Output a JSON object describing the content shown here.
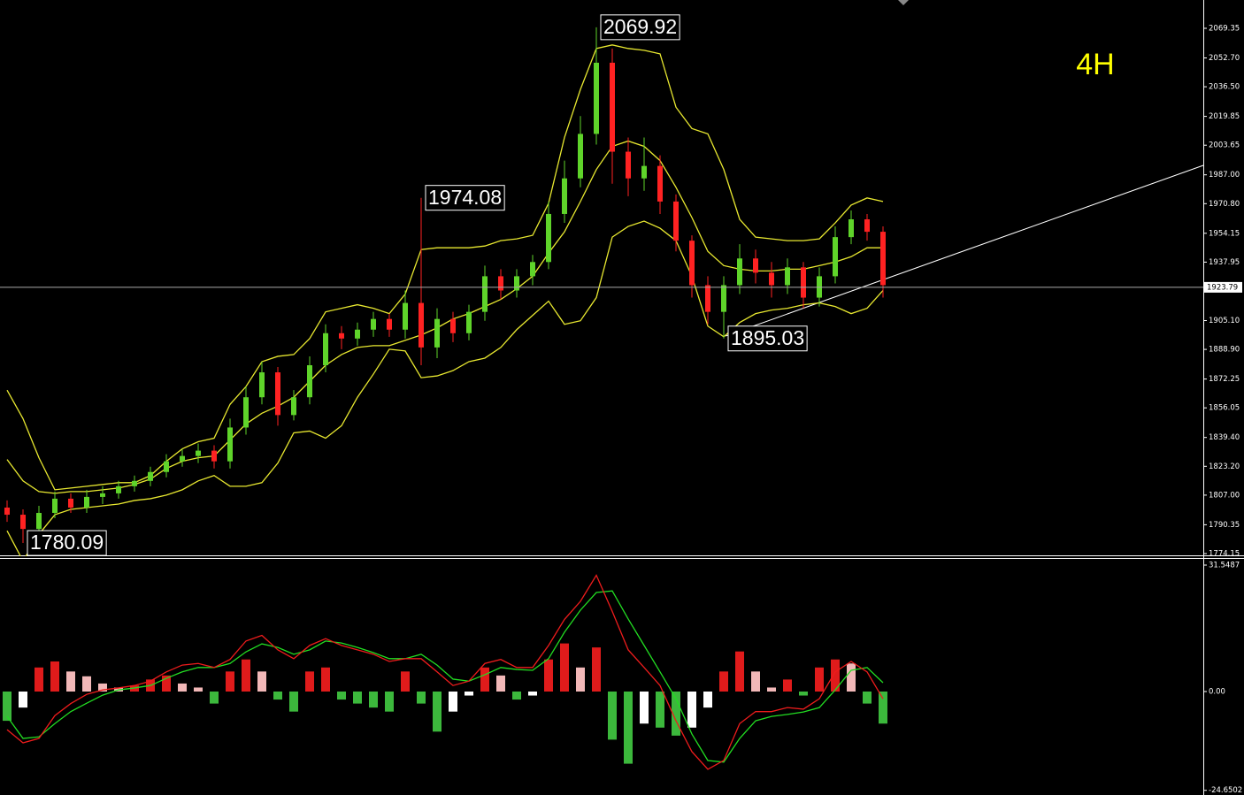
{
  "chart_data": [
    {
      "type": "candlestick",
      "timeframe": "4H",
      "ylim": [
        1772.66,
        2085.25
      ],
      "yticks": [
        2069.35,
        {
          "value": 2052.7,
          "label": "2052.70"
        },
        {
          "value": 2036.5,
          "label": "2036.50"
        },
        2019.85,
        2003.65,
        {
          "value": 1987,
          "label": "1987.00"
        },
        {
          "value": 1970.8,
          "label": "1970.80"
        },
        1954.15,
        1937.95,
        {
          "value": 1905.1,
          "label": "1905.10"
        },
        {
          "value": 1888.9,
          "label": "1888.90"
        },
        1872.25,
        1856.05,
        {
          "value": 1839.4,
          "label": "1839.40"
        },
        {
          "value": 1823.2,
          "label": "1823.20"
        },
        {
          "value": 1807,
          "label": "1807.00"
        },
        1790.35,
        1774.15
      ],
      "current_price": 1923.79,
      "annotations": [
        2069.92,
        1974.08,
        1895.03,
        1780.09
      ],
      "up_color": "#5fd42a",
      "down_color": "#ff2222",
      "band_color": "#e8e830",
      "open": [
        1800,
        1796,
        1788,
        1797,
        1805,
        1800,
        1806,
        1808,
        1812,
        1815,
        1820,
        1826,
        1829,
        1832,
        1826,
        1845,
        1862,
        1876,
        1852,
        1862,
        1880,
        1898,
        1895,
        1900,
        1906,
        1900,
        1915,
        1890,
        1906,
        1898,
        1910,
        1930,
        1922,
        1930,
        1938,
        1965,
        1985,
        2010,
        2050,
        2000,
        1985,
        1992,
        1972,
        1950,
        1925,
        1910,
        1925,
        1940,
        1932,
        1925,
        1935,
        1918,
        1930,
        1952,
        1962,
        1955
      ],
      "high": [
        1804,
        1799,
        1801,
        1809,
        1808,
        1810,
        1812,
        1815,
        1818,
        1823,
        1830,
        1833,
        1836,
        1835,
        1850,
        1868,
        1882,
        1879,
        1866,
        1885,
        1903,
        1902,
        1904,
        1910,
        1909,
        1922,
        1974.08,
        1912,
        1910,
        1914,
        1936,
        1934,
        1934,
        1942,
        1972,
        1995,
        2020,
        2069.92,
        2058,
        2008,
        2008,
        1998,
        1976,
        1953,
        1930,
        1930,
        1948,
        1945,
        1938,
        1940,
        1938,
        1935,
        1958,
        1967,
        1965,
        1958
      ],
      "low": [
        1792,
        1780.09,
        1785,
        1794,
        1797,
        1797,
        1802,
        1805,
        1809,
        1812,
        1817,
        1823,
        1825,
        1822,
        1822,
        1841,
        1858,
        1846,
        1849,
        1858,
        1876,
        1889,
        1891,
        1896,
        1896,
        1895,
        1880,
        1884,
        1893,
        1894,
        1905,
        1917,
        1918,
        1925,
        1934,
        1960,
        1980,
        2004,
        1982,
        1975,
        1978,
        1965,
        1944,
        1918,
        1903,
        1895.03,
        1920,
        1926,
        1918,
        1920,
        1912,
        1913,
        1926,
        1948,
        1950,
        1918
      ],
      "close": [
        1796,
        1788,
        1797,
        1805,
        1800,
        1806,
        1808,
        1812,
        1815,
        1820,
        1826,
        1829,
        1832,
        1826,
        1845,
        1862,
        1876,
        1852,
        1862,
        1880,
        1898,
        1895,
        1900,
        1906,
        1900,
        1915,
        1890,
        1906,
        1898,
        1910,
        1930,
        1922,
        1930,
        1938,
        1965,
        1985,
        2010,
        2050,
        2000,
        1985,
        1992,
        1972,
        1950,
        1925,
        1910,
        1925,
        1940,
        1932,
        1925,
        1935,
        1918,
        1930,
        1952,
        1962,
        1955,
        1925
      ],
      "upper": [
        1866,
        1850,
        1828,
        1810,
        1811,
        1812,
        1813,
        1814,
        1814,
        1818,
        1826,
        1833,
        1837,
        1839,
        1858,
        1868,
        1882,
        1885,
        1886,
        1895,
        1910,
        1912,
        1914,
        1912,
        1909,
        1920,
        1945,
        1946,
        1946,
        1946,
        1947,
        1950,
        1951,
        1953,
        1971,
        2008,
        2035,
        2058,
        2060,
        2058,
        2057,
        2055,
        2025,
        2013,
        2010,
        1990,
        1962,
        1952,
        1951,
        1950,
        1950,
        1951,
        1960,
        1970,
        1974,
        1972
      ],
      "middle": [
        1827,
        1815,
        1809,
        1808,
        1809,
        1809,
        1810,
        1811,
        1813,
        1816,
        1822,
        1826,
        1828,
        1829,
        1838,
        1847,
        1853,
        1857,
        1862,
        1871,
        1880,
        1886,
        1890,
        1891,
        1891,
        1894,
        1897,
        1901,
        1906,
        1909,
        1913,
        1917,
        1923,
        1930,
        1943,
        1955,
        1972,
        1990,
        2003,
        2006,
        2003,
        1995,
        1980,
        1963,
        1944,
        1936,
        1934,
        1933,
        1933,
        1934,
        1934,
        1936,
        1938,
        1941,
        1946,
        1946
      ],
      "lower": [
        1787,
        1770,
        1785,
        1796,
        1799,
        1800,
        1801,
        1802,
        1804,
        1805,
        1807,
        1810,
        1815,
        1818,
        1812,
        1812,
        1814,
        1825,
        1842,
        1843,
        1839,
        1846,
        1862,
        1875,
        1889,
        1888,
        1873,
        1874,
        1877,
        1882,
        1884,
        1890,
        1900,
        1908,
        1916,
        1903,
        1905,
        1918,
        1952,
        1958,
        1961,
        1957,
        1950,
        1930,
        1902,
        1896,
        1904,
        1909,
        1911,
        1912,
        1914,
        1915,
        1913,
        1909,
        1912,
        1922
      ]
    },
    {
      "type": "macd",
      "ylim": [
        -25.81,
        33.09
      ],
      "yticks": [
        31.5487,
        {
          "value": 0,
          "label": "0.00"
        },
        -24.6502
      ],
      "histogram_colors": {
        "positive_rising": "#e01b1b",
        "positive_falling": "#f2b8b8",
        "negative_falling": "#3cb83c",
        "negative_rising": "#ffffff"
      },
      "histogram": [
        -7.3,
        -4,
        6,
        7.5,
        5,
        3.8,
        2,
        1,
        1.5,
        3,
        4,
        2,
        1,
        -3,
        5,
        8,
        5,
        -2,
        -5,
        5,
        6,
        -2,
        -3,
        -4,
        -5,
        5,
        -3,
        -10,
        -5,
        -1,
        6,
        4,
        -2,
        -1,
        8,
        12,
        6,
        11,
        -12,
        -18,
        -8,
        -9,
        -11,
        -9,
        -4,
        5,
        10,
        5,
        1,
        3,
        -1,
        6,
        8,
        7,
        -3,
        -8
      ],
      "macd_color": "#ee1c1c",
      "macd": [
        -9.5,
        -12.8,
        -11.7,
        -6,
        -3,
        -0.7,
        0.4,
        0.9,
        1.5,
        2.6,
        4.9,
        6.6,
        7,
        6,
        8,
        12.6,
        14,
        10.4,
        8.2,
        11.5,
        13.2,
        11.5,
        10.4,
        9.3,
        7.5,
        8.2,
        8.2,
        4.9,
        1.5,
        2.6,
        7,
        8,
        6,
        6,
        11.5,
        18,
        22.5,
        29,
        20,
        10.4,
        6,
        1.5,
        -7.3,
        -15,
        -19.4,
        -17.2,
        -8,
        -5,
        -5,
        -4,
        -4.4,
        -1.8,
        4.9,
        7.5,
        4.9,
        -1.8
      ],
      "signal_color": "#22dd22",
      "signal": [
        -6.2,
        -11.7,
        -11.3,
        -8,
        -5,
        -2.9,
        -0.9,
        0.4,
        0.9,
        1.5,
        3.3,
        4.9,
        6,
        6,
        7,
        9.9,
        11.9,
        11,
        9.3,
        10.4,
        12.6,
        12.1,
        11,
        9.7,
        8.2,
        8.2,
        9.3,
        6.6,
        3.1,
        2.6,
        4.2,
        6,
        5.5,
        5.3,
        8.2,
        14.8,
        20.3,
        24.7,
        25.1,
        18.1,
        11.5,
        4.9,
        -1.8,
        -10.6,
        -17.2,
        -17.6,
        -11.7,
        -7.3,
        -6.2,
        -5.7,
        -5.1,
        -4,
        0.4,
        5.3,
        6,
        2.2
      ]
    }
  ]
}
